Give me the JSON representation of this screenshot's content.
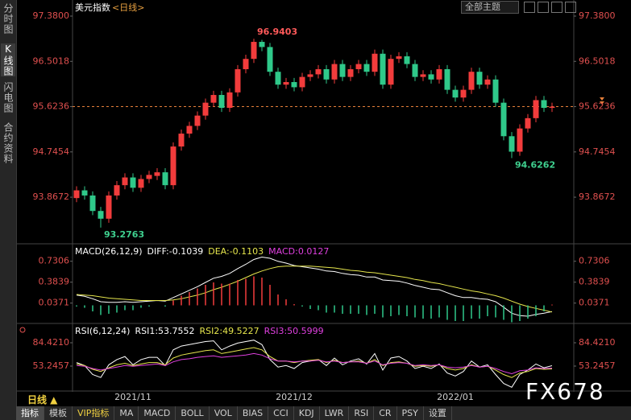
{
  "ui": {
    "sidebar_tabs": [
      "分时图",
      "K线图",
      "闪电图",
      "合约资料"
    ],
    "theme_select": "全部主题",
    "period": "日线 ▲",
    "toolbar": [
      "指标",
      "模板",
      "VIP指标",
      "MA",
      "MACD",
      "BOLL",
      "VOL",
      "BIAS",
      "CCI",
      "KDJ",
      "LWR",
      "RSI",
      "CR",
      "PSY",
      "设置"
    ],
    "watermark": "FX678"
  },
  "chart_data": [
    {
      "type": "candlestick",
      "title": "美元指数",
      "subtitle": "<日线>",
      "categories": [
        null,
        null,
        null,
        null,
        null,
        null,
        null,
        "2021/11",
        null,
        null,
        null,
        null,
        null,
        null,
        null,
        null,
        null,
        null,
        null,
        null,
        null,
        null,
        null,
        null,
        null,
        null,
        null,
        "2021/12",
        null,
        null,
        null,
        null,
        null,
        null,
        null,
        null,
        null,
        null,
        null,
        null,
        null,
        null,
        null,
        null,
        null,
        null,
        null,
        "2022/01",
        null,
        null,
        null,
        null,
        null,
        null,
        null,
        null,
        null,
        null,
        null,
        null
      ],
      "open": [
        93.85,
        94.0,
        93.9,
        93.6,
        93.45,
        93.9,
        94.1,
        94.25,
        94.05,
        94.22,
        94.28,
        94.35,
        94.1,
        94.85,
        95.1,
        95.25,
        95.45,
        95.7,
        95.85,
        95.6,
        95.9,
        96.35,
        96.55,
        96.88,
        96.78,
        96.3,
        96.05,
        96.1,
        96.0,
        96.2,
        96.25,
        96.35,
        96.15,
        96.45,
        96.2,
        96.35,
        96.45,
        96.3,
        96.65,
        96.05,
        96.55,
        96.6,
        96.45,
        96.2,
        96.25,
        96.15,
        96.35,
        95.95,
        95.8,
        95.95,
        96.3,
        96.05,
        96.15,
        95.7,
        95.05,
        94.75,
        95.2,
        95.4,
        95.75,
        95.6
      ],
      "high": [
        94.08,
        94.08,
        93.98,
        93.68,
        93.98,
        94.18,
        94.33,
        94.33,
        94.3,
        94.38,
        94.43,
        94.43,
        94.93,
        95.18,
        95.33,
        95.53,
        95.78,
        95.93,
        95.93,
        95.98,
        96.43,
        96.63,
        96.9403,
        96.92,
        96.86,
        96.38,
        96.18,
        96.18,
        96.28,
        96.33,
        96.43,
        96.43,
        96.53,
        96.53,
        96.43,
        96.53,
        96.53,
        96.73,
        96.73,
        96.63,
        96.68,
        96.68,
        96.53,
        96.33,
        96.33,
        96.43,
        96.43,
        96.03,
        96.03,
        96.38,
        96.38,
        96.23,
        96.23,
        95.78,
        95.13,
        95.28,
        95.48,
        95.83,
        95.83,
        95.7
      ],
      "low": [
        93.77,
        93.82,
        93.52,
        93.2763,
        93.37,
        93.82,
        94.02,
        93.97,
        93.97,
        94.14,
        94.2,
        94.02,
        94.02,
        94.77,
        95.02,
        95.17,
        95.37,
        95.62,
        95.52,
        95.52,
        95.82,
        96.27,
        96.47,
        96.7,
        96.22,
        95.97,
        95.97,
        95.92,
        95.92,
        96.12,
        96.17,
        96.07,
        96.07,
        96.12,
        96.12,
        96.27,
        96.22,
        96.22,
        95.97,
        95.97,
        96.47,
        96.37,
        96.12,
        96.12,
        96.07,
        96.07,
        95.87,
        95.72,
        95.72,
        95.87,
        95.97,
        95.97,
        95.62,
        94.97,
        94.6262,
        94.67,
        95.12,
        95.32,
        95.52,
        95.52
      ],
      "close": [
        94.0,
        93.9,
        93.6,
        93.45,
        93.9,
        94.1,
        94.25,
        94.05,
        94.22,
        94.3,
        94.35,
        94.1,
        94.85,
        95.1,
        95.25,
        95.45,
        95.7,
        95.85,
        95.6,
        95.9,
        96.35,
        96.55,
        96.88,
        96.78,
        96.3,
        96.05,
        96.1,
        96.0,
        96.2,
        96.25,
        96.35,
        96.15,
        96.45,
        96.2,
        96.35,
        96.45,
        96.3,
        96.65,
        96.05,
        96.55,
        96.6,
        96.45,
        96.2,
        96.25,
        96.15,
        96.35,
        95.95,
        95.8,
        95.95,
        96.3,
        96.05,
        96.15,
        95.7,
        95.05,
        94.75,
        95.2,
        95.4,
        95.75,
        95.6,
        95.6236
      ],
      "up_color": "#f23c3c",
      "down_color": "#2fc98a",
      "price_line": 95.6236,
      "price_line_color": "#e8803a",
      "ylim": [
        93.01,
        97.536
      ],
      "yticks": [
        {
          "value": 97.38,
          "label": "97.3800"
        },
        96.5018,
        95.6236,
        94.7454,
        93.8672
      ]
    },
    {
      "type": "line",
      "title": "MACD(26,12,9)",
      "series": [
        {
          "name": "DIFF:-0.1039",
          "color": "#ffffff",
          "values": [
            0.17,
            0.15,
            0.11,
            0.06,
            0.05,
            0.05,
            0.06,
            0.05,
            0.06,
            0.07,
            0.08,
            0.07,
            0.13,
            0.19,
            0.25,
            0.31,
            0.38,
            0.45,
            0.48,
            0.53,
            0.61,
            0.68,
            0.76,
            0.8,
            0.78,
            0.73,
            0.7,
            0.66,
            0.64,
            0.62,
            0.6,
            0.57,
            0.56,
            0.53,
            0.51,
            0.5,
            0.47,
            0.47,
            0.42,
            0.41,
            0.4,
            0.37,
            0.33,
            0.3,
            0.27,
            0.26,
            0.21,
            0.16,
            0.13,
            0.13,
            0.11,
            0.1,
            0.06,
            -0.03,
            -0.13,
            -0.17,
            -0.18,
            -0.15,
            -0.13,
            -0.1039
          ]
        },
        {
          "name": "DEA:-0.1103",
          "color": "#e6e64d",
          "values": [
            0.18,
            0.17,
            0.16,
            0.14,
            0.12,
            0.11,
            0.1,
            0.09,
            0.08,
            0.08,
            0.08,
            0.08,
            0.09,
            0.11,
            0.14,
            0.17,
            0.21,
            0.26,
            0.3,
            0.35,
            0.4,
            0.46,
            0.52,
            0.57,
            0.61,
            0.64,
            0.65,
            0.65,
            0.65,
            0.65,
            0.64,
            0.63,
            0.62,
            0.6,
            0.58,
            0.57,
            0.55,
            0.54,
            0.52,
            0.5,
            0.48,
            0.46,
            0.43,
            0.41,
            0.38,
            0.36,
            0.33,
            0.3,
            0.27,
            0.24,
            0.22,
            0.19,
            0.16,
            0.12,
            0.07,
            0.02,
            -0.02,
            -0.05,
            -0.08,
            -0.1103
          ]
        },
        {
          "name": "MACD:0.0127",
          "color": "#e040e0",
          "type": "bar",
          "up_color": "#f23c3c",
          "down_color": "#2fc98a",
          "values": [
            -0.02,
            -0.04,
            -0.1,
            -0.16,
            -0.14,
            -0.12,
            -0.08,
            -0.08,
            -0.04,
            -0.02,
            0.0,
            -0.02,
            0.08,
            0.16,
            0.22,
            0.28,
            0.34,
            0.38,
            0.36,
            0.36,
            0.42,
            0.44,
            0.48,
            0.46,
            0.34,
            0.18,
            0.1,
            0.02,
            -0.02,
            -0.06,
            -0.08,
            -0.12,
            -0.12,
            -0.14,
            -0.14,
            -0.14,
            -0.16,
            -0.14,
            -0.2,
            -0.18,
            -0.16,
            -0.18,
            -0.2,
            -0.22,
            -0.22,
            -0.2,
            -0.24,
            -0.26,
            -0.26,
            -0.22,
            -0.22,
            -0.18,
            -0.2,
            -0.24,
            -0.28,
            -0.26,
            -0.22,
            -0.18,
            -0.1,
            0.0127
          ]
        }
      ],
      "ylim": [
        -0.3,
        0.98
      ],
      "yticks": [
        0.7306,
        0.3839,
        0.0371
      ]
    },
    {
      "type": "line",
      "title": "RSI(6,12,24)",
      "series": [
        {
          "name": "RSI1:53.7552",
          "color": "#ffffff",
          "values": [
            58,
            54,
            42,
            38,
            55,
            62,
            66,
            55,
            62,
            65,
            65,
            54,
            75,
            80,
            82,
            84,
            86,
            87,
            75,
            80,
            84,
            86,
            88,
            82,
            62,
            52,
            54,
            50,
            58,
            60,
            62,
            54,
            64,
            55,
            60,
            63,
            56,
            70,
            48,
            64,
            66,
            60,
            50,
            53,
            50,
            56,
            44,
            40,
            46,
            60,
            52,
            55,
            42,
            30,
            25,
            42,
            48,
            56,
            51,
            53.7552
          ]
        },
        {
          "name": "RSI2:49.5227",
          "color": "#e6e64d",
          "values": [
            56,
            54,
            49,
            46,
            51,
            55,
            57,
            54,
            56,
            58,
            58,
            55,
            64,
            68,
            70,
            72,
            74,
            75,
            70,
            72,
            74,
            76,
            78,
            75,
            66,
            60,
            60,
            58,
            60,
            61,
            62,
            58,
            61,
            58,
            59,
            60,
            57,
            62,
            54,
            58,
            59,
            57,
            53,
            54,
            53,
            55,
            50,
            48,
            50,
            55,
            52,
            53,
            48,
            42,
            38,
            44,
            46,
            50,
            49,
            49.5227
          ]
        },
        {
          "name": "RSI3:50.5999",
          "color": "#e040e0",
          "values": [
            54,
            53,
            50,
            48,
            50,
            52,
            54,
            53,
            54,
            55,
            56,
            54,
            59,
            62,
            63,
            65,
            66,
            67,
            65,
            66,
            67,
            68,
            70,
            68,
            63,
            60,
            60,
            59,
            60,
            60,
            61,
            59,
            60,
            58,
            59,
            59,
            57,
            60,
            55,
            57,
            58,
            57,
            54,
            55,
            54,
            55,
            52,
            51,
            52,
            54,
            52,
            53,
            50,
            46,
            43,
            47,
            48,
            51,
            50,
            50.5999
          ]
        }
      ],
      "ylim": [
        21,
        107
      ],
      "yticks": [
        {
          "value": 84.421,
          "label": "84.4210"
        },
        53.2457
      ]
    }
  ]
}
